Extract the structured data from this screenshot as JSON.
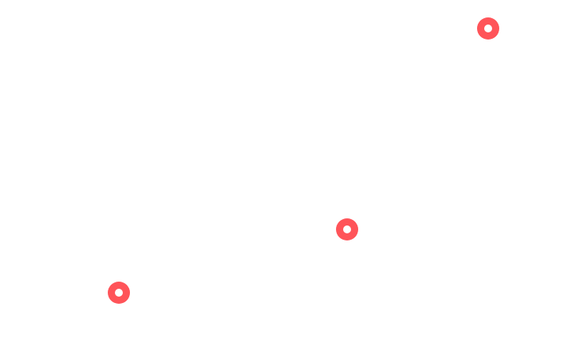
{
  "canvas": {
    "background": "#ffffff"
  },
  "markers": [
    {
      "icon": "ring-marker-icon",
      "color": "#ff5459"
    },
    {
      "icon": "ring-marker-icon",
      "color": "#ff5459"
    },
    {
      "icon": "ring-marker-icon",
      "color": "#ff5459"
    }
  ]
}
